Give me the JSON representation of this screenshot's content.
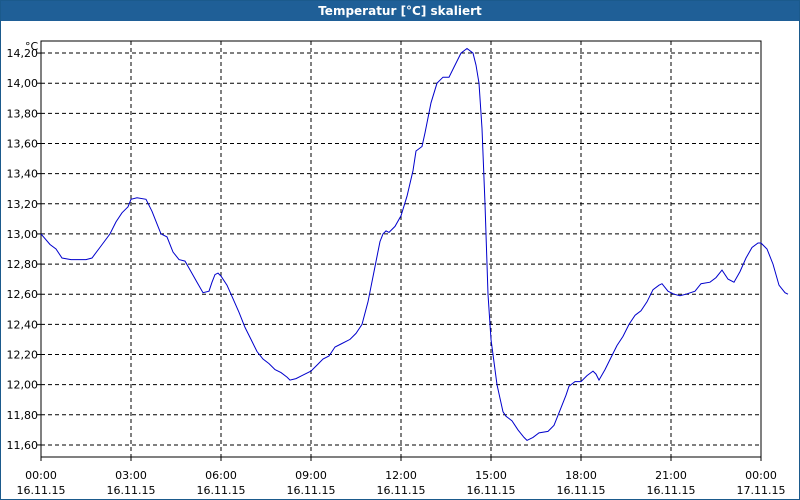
{
  "window": {
    "title": "Temperatur [°C] skaliert"
  },
  "chart_data": {
    "type": "line",
    "title": "Temperatur [°C] skaliert",
    "ylabel": "°C",
    "xlabel": "",
    "ylim": [
      11.52,
      14.28
    ],
    "xlim": [
      0,
      24
    ],
    "grid": true,
    "line_color": "#0000cc",
    "y_ticks": [
      {
        "value": 11.6,
        "label": "11,60"
      },
      {
        "value": 11.8,
        "label": "11,80"
      },
      {
        "value": 12.0,
        "label": "12,00"
      },
      {
        "value": 12.2,
        "label": "12,20"
      },
      {
        "value": 12.4,
        "label": "12,40"
      },
      {
        "value": 12.6,
        "label": "12,60"
      },
      {
        "value": 12.8,
        "label": "12,80"
      },
      {
        "value": 13.0,
        "label": "13,00"
      },
      {
        "value": 13.2,
        "label": "13,20"
      },
      {
        "value": 13.4,
        "label": "13,40"
      },
      {
        "value": 13.6,
        "label": "13,60"
      },
      {
        "value": 13.8,
        "label": "13,80"
      },
      {
        "value": 14.0,
        "label": "14,00"
      },
      {
        "value": 14.2,
        "label": "14,20"
      }
    ],
    "x_ticks": [
      {
        "value": 0,
        "time": "00:00",
        "date": "16.11.15"
      },
      {
        "value": 3,
        "time": "03:00",
        "date": "16.11.15"
      },
      {
        "value": 6,
        "time": "06:00",
        "date": "16.11.15"
      },
      {
        "value": 9,
        "time": "09:00",
        "date": "16.11.15"
      },
      {
        "value": 12,
        "time": "12:00",
        "date": "16.11.15"
      },
      {
        "value": 15,
        "time": "15:00",
        "date": "16.11.15"
      },
      {
        "value": 18,
        "time": "18:00",
        "date": "16.11.15"
      },
      {
        "value": 21,
        "time": "21:00",
        "date": "16.11.15"
      },
      {
        "value": 24,
        "time": "00:00",
        "date": "17.11.15"
      }
    ],
    "series": [
      {
        "values": [
          [
            0.0,
            13.0
          ],
          [
            0.3,
            12.93
          ],
          [
            0.5,
            12.9
          ],
          [
            0.7,
            12.84
          ],
          [
            1.0,
            12.83
          ],
          [
            1.3,
            12.83
          ],
          [
            1.5,
            12.83
          ],
          [
            1.7,
            12.84
          ],
          [
            2.0,
            12.92
          ],
          [
            2.3,
            13.0
          ],
          [
            2.5,
            13.08
          ],
          [
            2.7,
            13.14
          ],
          [
            2.9,
            13.18
          ],
          [
            3.0,
            13.23
          ],
          [
            3.2,
            13.24
          ],
          [
            3.5,
            13.23
          ],
          [
            3.7,
            13.15
          ],
          [
            3.9,
            13.05
          ],
          [
            4.0,
            13.0
          ],
          [
            4.2,
            12.98
          ],
          [
            4.4,
            12.88
          ],
          [
            4.6,
            12.83
          ],
          [
            4.8,
            12.82
          ],
          [
            5.0,
            12.75
          ],
          [
            5.2,
            12.68
          ],
          [
            5.4,
            12.61
          ],
          [
            5.6,
            12.62
          ],
          [
            5.7,
            12.68
          ],
          [
            5.8,
            12.73
          ],
          [
            5.9,
            12.74
          ],
          [
            6.0,
            12.72
          ],
          [
            6.2,
            12.66
          ],
          [
            6.4,
            12.57
          ],
          [
            6.6,
            12.48
          ],
          [
            6.8,
            12.38
          ],
          [
            7.0,
            12.3
          ],
          [
            7.2,
            12.22
          ],
          [
            7.4,
            12.17
          ],
          [
            7.6,
            12.14
          ],
          [
            7.8,
            12.1
          ],
          [
            8.0,
            12.08
          ],
          [
            8.2,
            12.05
          ],
          [
            8.3,
            12.03
          ],
          [
            8.5,
            12.04
          ],
          [
            8.7,
            12.06
          ],
          [
            9.0,
            12.09
          ],
          [
            9.2,
            12.13
          ],
          [
            9.4,
            12.17
          ],
          [
            9.6,
            12.19
          ],
          [
            9.8,
            12.25
          ],
          [
            10.0,
            12.27
          ],
          [
            10.3,
            12.3
          ],
          [
            10.5,
            12.34
          ],
          [
            10.7,
            12.4
          ],
          [
            10.9,
            12.55
          ],
          [
            11.0,
            12.65
          ],
          [
            11.1,
            12.75
          ],
          [
            11.2,
            12.85
          ],
          [
            11.3,
            12.95
          ],
          [
            11.4,
            13.0
          ],
          [
            11.5,
            13.02
          ],
          [
            11.6,
            13.01
          ],
          [
            11.8,
            13.05
          ],
          [
            12.0,
            13.12
          ],
          [
            12.2,
            13.25
          ],
          [
            12.4,
            13.42
          ],
          [
            12.5,
            13.55
          ],
          [
            12.7,
            13.58
          ],
          [
            12.8,
            13.67
          ],
          [
            13.0,
            13.87
          ],
          [
            13.2,
            14.0
          ],
          [
            13.4,
            14.04
          ],
          [
            13.6,
            14.04
          ],
          [
            13.8,
            14.12
          ],
          [
            14.0,
            14.2
          ],
          [
            14.2,
            14.23
          ],
          [
            14.4,
            14.2
          ],
          [
            14.5,
            14.12
          ],
          [
            14.6,
            14.0
          ],
          [
            14.7,
            13.7
          ],
          [
            14.8,
            13.2
          ],
          [
            14.9,
            12.6
          ],
          [
            15.0,
            12.3
          ],
          [
            15.2,
            12.0
          ],
          [
            15.4,
            11.82
          ],
          [
            15.5,
            11.79
          ],
          [
            15.7,
            11.76
          ],
          [
            15.9,
            11.7
          ],
          [
            16.1,
            11.65
          ],
          [
            16.2,
            11.63
          ],
          [
            16.4,
            11.65
          ],
          [
            16.6,
            11.68
          ],
          [
            16.9,
            11.69
          ],
          [
            17.1,
            11.73
          ],
          [
            17.3,
            11.83
          ],
          [
            17.5,
            11.93
          ],
          [
            17.6,
            11.99
          ],
          [
            17.8,
            12.02
          ],
          [
            18.0,
            12.02
          ],
          [
            18.2,
            12.06
          ],
          [
            18.4,
            12.09
          ],
          [
            18.5,
            12.07
          ],
          [
            18.6,
            12.03
          ],
          [
            18.8,
            12.1
          ],
          [
            19.0,
            12.18
          ],
          [
            19.2,
            12.26
          ],
          [
            19.4,
            12.32
          ],
          [
            19.6,
            12.4
          ],
          [
            19.8,
            12.46
          ],
          [
            20.0,
            12.49
          ],
          [
            20.2,
            12.55
          ],
          [
            20.4,
            12.63
          ],
          [
            20.6,
            12.66
          ],
          [
            20.7,
            12.67
          ],
          [
            20.9,
            12.62
          ],
          [
            21.1,
            12.6
          ],
          [
            21.3,
            12.59
          ],
          [
            21.5,
            12.6
          ],
          [
            21.8,
            12.62
          ],
          [
            22.0,
            12.67
          ],
          [
            22.3,
            12.68
          ],
          [
            22.5,
            12.71
          ],
          [
            22.7,
            12.76
          ],
          [
            22.9,
            12.7
          ],
          [
            23.1,
            12.68
          ],
          [
            23.3,
            12.75
          ],
          [
            23.5,
            12.84
          ],
          [
            23.7,
            12.91
          ],
          [
            23.9,
            12.94
          ],
          [
            24.0,
            12.94
          ],
          [
            24.2,
            12.9
          ],
          [
            24.4,
            12.8
          ],
          [
            24.6,
            12.66
          ],
          [
            24.8,
            12.61
          ],
          [
            24.9,
            12.6
          ]
        ]
      }
    ]
  }
}
